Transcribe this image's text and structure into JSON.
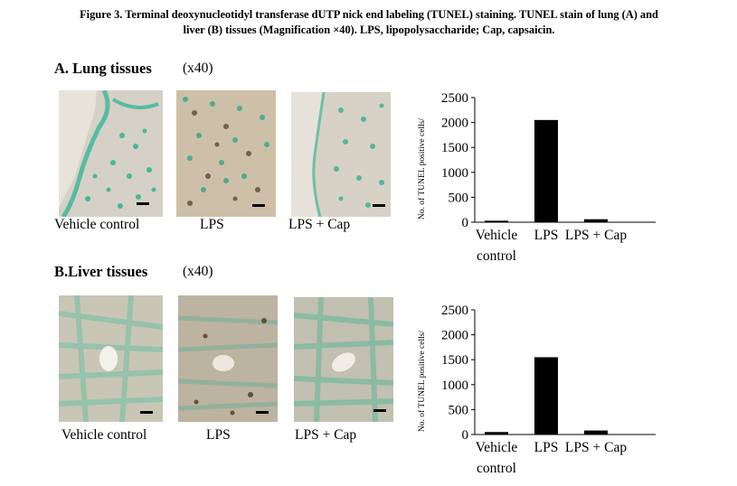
{
  "caption": {
    "line1": "Figure 3. Terminal deoxynucleotidyl transferase dUTP nick end labeling (TUNEL) staining. TUNEL stain of lung (A) and",
    "line2": "liver (B) tissues (Magnification ×40). LPS, lipopolysaccharide; Cap, capsaicin."
  },
  "panels": [
    {
      "title": "A. Lung tissues",
      "magnification": "(x40)",
      "image_labels": [
        "Vehicle control",
        "LPS",
        "LPS + Cap"
      ]
    },
    {
      "title": "B.Liver tissues",
      "magnification": "(x40)",
      "image_labels": [
        "Vehicle control",
        "LPS",
        "LPS + Cap"
      ]
    }
  ],
  "chart_data": [
    {
      "type": "bar",
      "categories": [
        "Vehicle control",
        "LPS",
        "LPS + Cap"
      ],
      "category_lines": [
        [
          "Vehicle",
          "control"
        ],
        [
          "LPS"
        ],
        [
          "LPS + Cap"
        ]
      ],
      "values": [
        30,
        2050,
        60
      ],
      "ylabel": "No. of TUNEL positive cells/",
      "yticks": [
        0,
        500,
        1000,
        1500,
        2000,
        2500
      ],
      "ylim": [
        0,
        2500
      ],
      "bar_color": "#000000"
    },
    {
      "type": "bar",
      "categories": [
        "Vehicle control",
        "LPS",
        "LPS + Cap"
      ],
      "category_lines": [
        [
          "Vehicle",
          "control"
        ],
        [
          "LPS"
        ],
        [
          "LPS + Cap"
        ]
      ],
      "values": [
        50,
        1550,
        80
      ],
      "ylabel": "No. of TUNEL positive cells/",
      "yticks": [
        0,
        500,
        1000,
        1500,
        2000,
        2500
      ],
      "ylim": [
        0,
        2500
      ],
      "bar_color": "#000000"
    }
  ]
}
